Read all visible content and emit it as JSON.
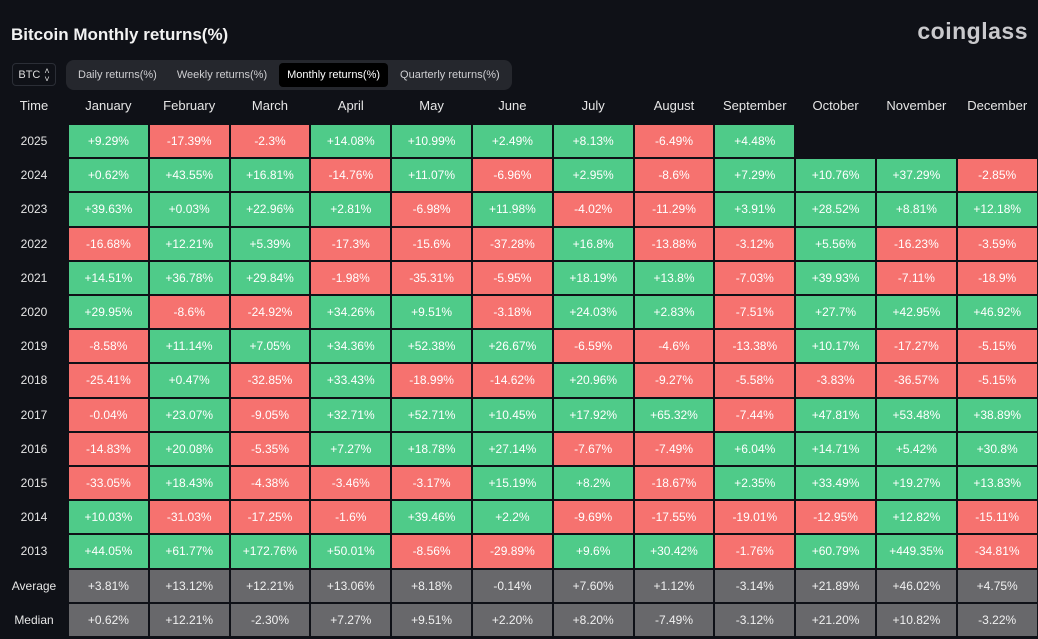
{
  "header": {
    "title": "Bitcoin Monthly returns(%)",
    "logo": "coinglass",
    "asset": "BTC",
    "asset_icon": "up-down-chevron-icon"
  },
  "tabs": [
    {
      "label": "Daily returns(%)",
      "active": false
    },
    {
      "label": "Weekly returns(%)",
      "active": false
    },
    {
      "label": "Monthly returns(%)",
      "active": true
    },
    {
      "label": "Quarterly returns(%)",
      "active": false
    }
  ],
  "colors": {
    "positive": "#4fcb89",
    "negative": "#f6726f",
    "summary": "#68686b",
    "background": "#0f1117"
  },
  "chart_data": {
    "type": "heatmap",
    "title": "Bitcoin Monthly returns(%)",
    "row_header": "Time",
    "columns": [
      "January",
      "February",
      "March",
      "April",
      "May",
      "June",
      "July",
      "August",
      "September",
      "October",
      "November",
      "December"
    ],
    "rows": [
      {
        "label": "2025",
        "values": [
          "+9.29%",
          "-17.39%",
          "-2.3%",
          "+14.08%",
          "+10.99%",
          "+2.49%",
          "+8.13%",
          "-6.49%",
          "+4.48%",
          "",
          "",
          ""
        ]
      },
      {
        "label": "2024",
        "values": [
          "+0.62%",
          "+43.55%",
          "+16.81%",
          "-14.76%",
          "+11.07%",
          "-6.96%",
          "+2.95%",
          "-8.6%",
          "+7.29%",
          "+10.76%",
          "+37.29%",
          "-2.85%"
        ]
      },
      {
        "label": "2023",
        "values": [
          "+39.63%",
          "+0.03%",
          "+22.96%",
          "+2.81%",
          "-6.98%",
          "+11.98%",
          "-4.02%",
          "-11.29%",
          "+3.91%",
          "+28.52%",
          "+8.81%",
          "+12.18%"
        ]
      },
      {
        "label": "2022",
        "values": [
          "-16.68%",
          "+12.21%",
          "+5.39%",
          "-17.3%",
          "-15.6%",
          "-37.28%",
          "+16.8%",
          "-13.88%",
          "-3.12%",
          "+5.56%",
          "-16.23%",
          "-3.59%"
        ]
      },
      {
        "label": "2021",
        "values": [
          "+14.51%",
          "+36.78%",
          "+29.84%",
          "-1.98%",
          "-35.31%",
          "-5.95%",
          "+18.19%",
          "+13.8%",
          "-7.03%",
          "+39.93%",
          "-7.11%",
          "-18.9%"
        ]
      },
      {
        "label": "2020",
        "values": [
          "+29.95%",
          "-8.6%",
          "-24.92%",
          "+34.26%",
          "+9.51%",
          "-3.18%",
          "+24.03%",
          "+2.83%",
          "-7.51%",
          "+27.7%",
          "+42.95%",
          "+46.92%"
        ]
      },
      {
        "label": "2019",
        "values": [
          "-8.58%",
          "+11.14%",
          "+7.05%",
          "+34.36%",
          "+52.38%",
          "+26.67%",
          "-6.59%",
          "-4.6%",
          "-13.38%",
          "+10.17%",
          "-17.27%",
          "-5.15%"
        ]
      },
      {
        "label": "2018",
        "values": [
          "-25.41%",
          "+0.47%",
          "-32.85%",
          "+33.43%",
          "-18.99%",
          "-14.62%",
          "+20.96%",
          "-9.27%",
          "-5.58%",
          "-3.83%",
          "-36.57%",
          "-5.15%"
        ]
      },
      {
        "label": "2017",
        "values": [
          "-0.04%",
          "+23.07%",
          "-9.05%",
          "+32.71%",
          "+52.71%",
          "+10.45%",
          "+17.92%",
          "+65.32%",
          "-7.44%",
          "+47.81%",
          "+53.48%",
          "+38.89%"
        ]
      },
      {
        "label": "2016",
        "values": [
          "-14.83%",
          "+20.08%",
          "-5.35%",
          "+7.27%",
          "+18.78%",
          "+27.14%",
          "-7.67%",
          "-7.49%",
          "+6.04%",
          "+14.71%",
          "+5.42%",
          "+30.8%"
        ]
      },
      {
        "label": "2015",
        "values": [
          "-33.05%",
          "+18.43%",
          "-4.38%",
          "-3.46%",
          "-3.17%",
          "+15.19%",
          "+8.2%",
          "-18.67%",
          "+2.35%",
          "+33.49%",
          "+19.27%",
          "+13.83%"
        ]
      },
      {
        "label": "2014",
        "values": [
          "+10.03%",
          "-31.03%",
          "-17.25%",
          "-1.6%",
          "+39.46%",
          "+2.2%",
          "-9.69%",
          "-17.55%",
          "-19.01%",
          "-12.95%",
          "+12.82%",
          "-15.11%"
        ]
      },
      {
        "label": "2013",
        "values": [
          "+44.05%",
          "+61.77%",
          "+172.76%",
          "+50.01%",
          "-8.56%",
          "-29.89%",
          "+9.6%",
          "+30.42%",
          "-1.76%",
          "+60.79%",
          "+449.35%",
          "-34.81%"
        ]
      }
    ],
    "summary": [
      {
        "label": "Average",
        "values": [
          "+3.81%",
          "+13.12%",
          "+12.21%",
          "+13.06%",
          "+8.18%",
          "-0.14%",
          "+7.60%",
          "+1.12%",
          "-3.14%",
          "+21.89%",
          "+46.02%",
          "+4.75%"
        ]
      },
      {
        "label": "Median",
        "values": [
          "+0.62%",
          "+12.21%",
          "-2.30%",
          "+7.27%",
          "+9.51%",
          "+2.20%",
          "+8.20%",
          "-7.49%",
          "-3.12%",
          "+21.20%",
          "+10.82%",
          "-3.22%"
        ]
      }
    ]
  }
}
